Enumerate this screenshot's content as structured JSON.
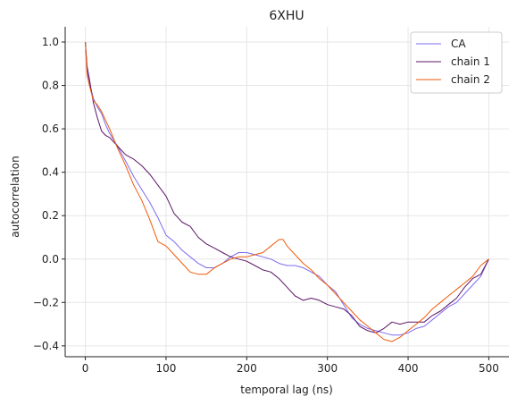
{
  "chart_data": {
    "type": "line",
    "title": "6XHU",
    "xlabel": "temporal lag (ns)",
    "ylabel": "autocorrelation",
    "xlim": [
      -25,
      525
    ],
    "ylim": [
      -0.45,
      1.07
    ],
    "xticks": [
      0,
      100,
      200,
      300,
      400,
      500
    ],
    "yticks": [
      -0.4,
      -0.2,
      0.0,
      0.2,
      0.4,
      0.6,
      0.8,
      1.0
    ],
    "xtick_labels": [
      "0",
      "100",
      "200",
      "300",
      "400",
      "500"
    ],
    "ytick_labels": [
      "−0.4",
      "−0.2",
      "0.0",
      "0.2",
      "0.4",
      "0.6",
      "0.8",
      "1.0"
    ],
    "grid": true,
    "legend_position": "top-right",
    "series": [
      {
        "name": "CA",
        "color": "#7b6cf0",
        "x": [
          0,
          2,
          5,
          10,
          15,
          20,
          25,
          30,
          40,
          50,
          60,
          70,
          80,
          90,
          100,
          110,
          120,
          130,
          140,
          150,
          160,
          170,
          180,
          190,
          200,
          210,
          220,
          230,
          240,
          250,
          260,
          270,
          280,
          290,
          300,
          310,
          320,
          330,
          340,
          350,
          360,
          370,
          380,
          390,
          400,
          410,
          420,
          430,
          440,
          450,
          460,
          470,
          480,
          490,
          500
        ],
        "y": [
          1.0,
          0.88,
          0.81,
          0.74,
          0.7,
          0.67,
          0.62,
          0.58,
          0.52,
          0.45,
          0.38,
          0.32,
          0.26,
          0.19,
          0.11,
          0.08,
          0.04,
          0.01,
          -0.02,
          -0.04,
          -0.04,
          -0.02,
          0.01,
          0.03,
          0.03,
          0.02,
          0.01,
          0.0,
          -0.02,
          -0.03,
          -0.03,
          -0.04,
          -0.06,
          -0.08,
          -0.12,
          -0.15,
          -0.21,
          -0.27,
          -0.3,
          -0.32,
          -0.33,
          -0.34,
          -0.35,
          -0.35,
          -0.34,
          -0.32,
          -0.31,
          -0.28,
          -0.25,
          -0.22,
          -0.2,
          -0.16,
          -0.12,
          -0.08,
          0.0
        ]
      },
      {
        "name": "chain 1",
        "color": "#5c1566",
        "x": [
          0,
          2,
          5,
          10,
          15,
          20,
          25,
          30,
          40,
          50,
          60,
          70,
          80,
          90,
          100,
          110,
          120,
          130,
          140,
          150,
          160,
          170,
          180,
          190,
          200,
          210,
          220,
          230,
          240,
          250,
          260,
          270,
          280,
          290,
          300,
          310,
          320,
          330,
          340,
          350,
          360,
          370,
          380,
          390,
          400,
          410,
          420,
          430,
          440,
          450,
          460,
          470,
          480,
          490,
          500
        ],
        "y": [
          1.0,
          0.89,
          0.83,
          0.72,
          0.65,
          0.59,
          0.57,
          0.56,
          0.52,
          0.48,
          0.46,
          0.43,
          0.39,
          0.34,
          0.29,
          0.21,
          0.17,
          0.15,
          0.1,
          0.07,
          0.05,
          0.03,
          0.01,
          0.0,
          -0.01,
          -0.03,
          -0.05,
          -0.06,
          -0.09,
          -0.13,
          -0.17,
          -0.19,
          -0.18,
          -0.19,
          -0.21,
          -0.22,
          -0.23,
          -0.26,
          -0.31,
          -0.33,
          -0.34,
          -0.32,
          -0.29,
          -0.3,
          -0.29,
          -0.29,
          -0.29,
          -0.26,
          -0.24,
          -0.21,
          -0.18,
          -0.13,
          -0.09,
          -0.07,
          0.0
        ]
      },
      {
        "name": "chain 2",
        "color": "#f05a0a",
        "x": [
          0,
          2,
          5,
          10,
          15,
          20,
          25,
          30,
          40,
          50,
          60,
          70,
          80,
          90,
          100,
          110,
          120,
          130,
          140,
          150,
          160,
          170,
          180,
          190,
          200,
          210,
          220,
          230,
          240,
          245,
          250,
          260,
          270,
          280,
          290,
          300,
          310,
          320,
          330,
          340,
          350,
          360,
          370,
          380,
          390,
          400,
          410,
          420,
          430,
          440,
          450,
          460,
          470,
          480,
          490,
          500
        ],
        "y": [
          1.0,
          0.85,
          0.8,
          0.73,
          0.71,
          0.68,
          0.64,
          0.6,
          0.51,
          0.43,
          0.34,
          0.27,
          0.18,
          0.08,
          0.06,
          0.02,
          -0.02,
          -0.06,
          -0.07,
          -0.07,
          -0.04,
          -0.02,
          0.0,
          0.01,
          0.01,
          0.02,
          0.03,
          0.06,
          0.09,
          0.09,
          0.06,
          0.02,
          -0.02,
          -0.05,
          -0.09,
          -0.12,
          -0.16,
          -0.2,
          -0.24,
          -0.28,
          -0.31,
          -0.34,
          -0.37,
          -0.38,
          -0.36,
          -0.33,
          -0.3,
          -0.27,
          -0.23,
          -0.2,
          -0.17,
          -0.14,
          -0.11,
          -0.08,
          -0.03,
          0.0
        ]
      }
    ]
  }
}
